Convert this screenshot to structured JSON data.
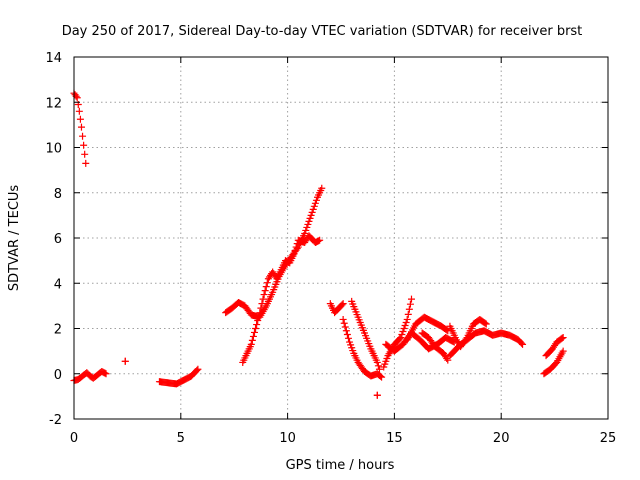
{
  "chart_data": {
    "type": "scatter",
    "title": "Day 250 of 2017, Sidereal Day-to-day VTEC variation (SDTVAR) for receiver brst",
    "xlabel": "GPS time / hours",
    "ylabel": "SDTVAR / TECUs",
    "xlim": [
      0,
      25
    ],
    "ylim": [
      -2,
      14
    ],
    "xticks": [
      0,
      5,
      10,
      15,
      20,
      25
    ],
    "yticks": [
      -2,
      0,
      2,
      4,
      6,
      8,
      10,
      12,
      14
    ],
    "xtick_labels": [
      "0",
      "5",
      "10",
      "15",
      "20",
      "25"
    ],
    "ytick_labels": [
      "-2",
      "0",
      "2",
      "4",
      "6",
      "8",
      "10",
      "12",
      "14"
    ],
    "grid": true,
    "marker": "plus",
    "color": "#ff0000",
    "segments": [
      [
        [
          0.0,
          12.4
        ],
        [
          0.15,
          12.2
        ],
        [
          0.25,
          11.6
        ],
        [
          0.35,
          10.9
        ],
        [
          0.45,
          10.1
        ],
        [
          0.55,
          9.3
        ]
      ],
      [
        [
          0.0,
          -0.3
        ],
        [
          0.2,
          -0.25
        ],
        [
          0.4,
          -0.1
        ],
        [
          0.6,
          0.05
        ],
        [
          0.75,
          -0.1
        ],
        [
          0.9,
          -0.2
        ],
        [
          1.1,
          -0.05
        ],
        [
          1.3,
          0.1
        ],
        [
          1.5,
          0.0
        ]
      ],
      [
        [
          2.4,
          0.55
        ],
        [
          2.4,
          0.55
        ]
      ],
      [
        [
          4.0,
          -0.35
        ],
        [
          4.4,
          -0.4
        ],
        [
          4.8,
          -0.45
        ],
        [
          5.1,
          -0.3
        ],
        [
          5.5,
          -0.1
        ],
        [
          5.8,
          0.2
        ]
      ],
      [
        [
          7.1,
          2.7
        ],
        [
          7.4,
          2.9
        ],
        [
          7.7,
          3.15
        ],
        [
          8.0,
          3.0
        ],
        [
          8.3,
          2.6
        ],
        [
          8.7,
          2.5
        ],
        [
          9.0,
          3.0
        ],
        [
          9.3,
          3.6
        ],
        [
          9.6,
          4.3
        ],
        [
          9.9,
          4.8
        ],
        [
          10.2,
          5.2
        ],
        [
          10.5,
          5.6
        ],
        [
          10.8,
          6.2
        ],
        [
          11.1,
          7.0
        ],
        [
          11.4,
          7.8
        ],
        [
          11.6,
          8.2
        ]
      ],
      [
        [
          7.9,
          0.5
        ],
        [
          8.1,
          0.9
        ],
        [
          8.3,
          1.3
        ],
        [
          8.5,
          2.0
        ],
        [
          8.7,
          2.7
        ],
        [
          8.9,
          3.5
        ],
        [
          9.1,
          4.2
        ],
        [
          9.3,
          4.5
        ],
        [
          9.5,
          4.2
        ],
        [
          9.7,
          4.6
        ],
        [
          9.9,
          5.0
        ],
        [
          10.1,
          4.9
        ],
        [
          10.3,
          5.3
        ],
        [
          10.5,
          5.9
        ],
        [
          10.8,
          5.8
        ],
        [
          11.0,
          6.1
        ],
        [
          11.3,
          5.8
        ],
        [
          11.5,
          5.9
        ]
      ],
      [
        [
          12.0,
          3.1
        ],
        [
          12.2,
          2.7
        ],
        [
          12.4,
          2.9
        ],
        [
          12.6,
          3.1
        ]
      ],
      [
        [
          12.6,
          2.4
        ],
        [
          12.9,
          1.4
        ],
        [
          13.1,
          0.9
        ],
        [
          13.3,
          0.5
        ],
        [
          13.6,
          0.1
        ],
        [
          13.9,
          -0.1
        ],
        [
          14.2,
          0.0
        ],
        [
          14.4,
          -0.15
        ]
      ],
      [
        [
          13.0,
          3.2
        ],
        [
          13.3,
          2.5
        ],
        [
          13.6,
          1.8
        ],
        [
          13.9,
          1.1
        ],
        [
          14.2,
          0.5
        ],
        [
          14.3,
          0.2
        ]
      ],
      [
        [
          14.2,
          -0.95
        ],
        [
          14.2,
          -0.95
        ]
      ],
      [
        [
          14.5,
          0.3
        ],
        [
          14.7,
          0.8
        ],
        [
          15.0,
          1.3
        ],
        [
          15.3,
          1.6
        ],
        [
          15.6,
          2.4
        ],
        [
          15.8,
          3.3
        ]
      ],
      [
        [
          14.6,
          1.3
        ],
        [
          15.0,
          1.0
        ],
        [
          15.4,
          1.3
        ],
        [
          15.8,
          1.8
        ],
        [
          16.2,
          1.5
        ],
        [
          16.6,
          1.1
        ],
        [
          17.0,
          1.3
        ],
        [
          17.4,
          1.6
        ],
        [
          17.8,
          1.4
        ]
      ],
      [
        [
          15.6,
          1.5
        ],
        [
          16.0,
          2.2
        ],
        [
          16.4,
          2.5
        ],
        [
          16.8,
          2.3
        ],
        [
          17.2,
          2.1
        ],
        [
          17.5,
          1.9
        ]
      ],
      [
        [
          16.3,
          1.8
        ],
        [
          16.6,
          1.6
        ],
        [
          16.9,
          1.2
        ],
        [
          17.3,
          0.9
        ],
        [
          17.5,
          0.6
        ]
      ],
      [
        [
          17.6,
          2.1
        ],
        [
          17.9,
          1.5
        ],
        [
          18.1,
          1.2
        ],
        [
          18.4,
          1.6
        ],
        [
          18.7,
          2.2
        ],
        [
          19.0,
          2.4
        ],
        [
          19.3,
          2.2
        ]
      ],
      [
        [
          17.6,
          0.8
        ],
        [
          18.0,
          1.2
        ],
        [
          18.4,
          1.5
        ],
        [
          18.8,
          1.8
        ],
        [
          19.2,
          1.9
        ],
        [
          19.6,
          1.7
        ],
        [
          20.0,
          1.8
        ],
        [
          20.4,
          1.7
        ],
        [
          20.8,
          1.5
        ],
        [
          21.0,
          1.3
        ]
      ],
      [
        [
          22.0,
          0.0
        ],
        [
          22.3,
          0.2
        ],
        [
          22.6,
          0.5
        ],
        [
          22.9,
          1.0
        ]
      ],
      [
        [
          22.1,
          0.8
        ],
        [
          22.4,
          1.1
        ],
        [
          22.6,
          1.4
        ],
        [
          22.9,
          1.6
        ]
      ]
    ]
  }
}
